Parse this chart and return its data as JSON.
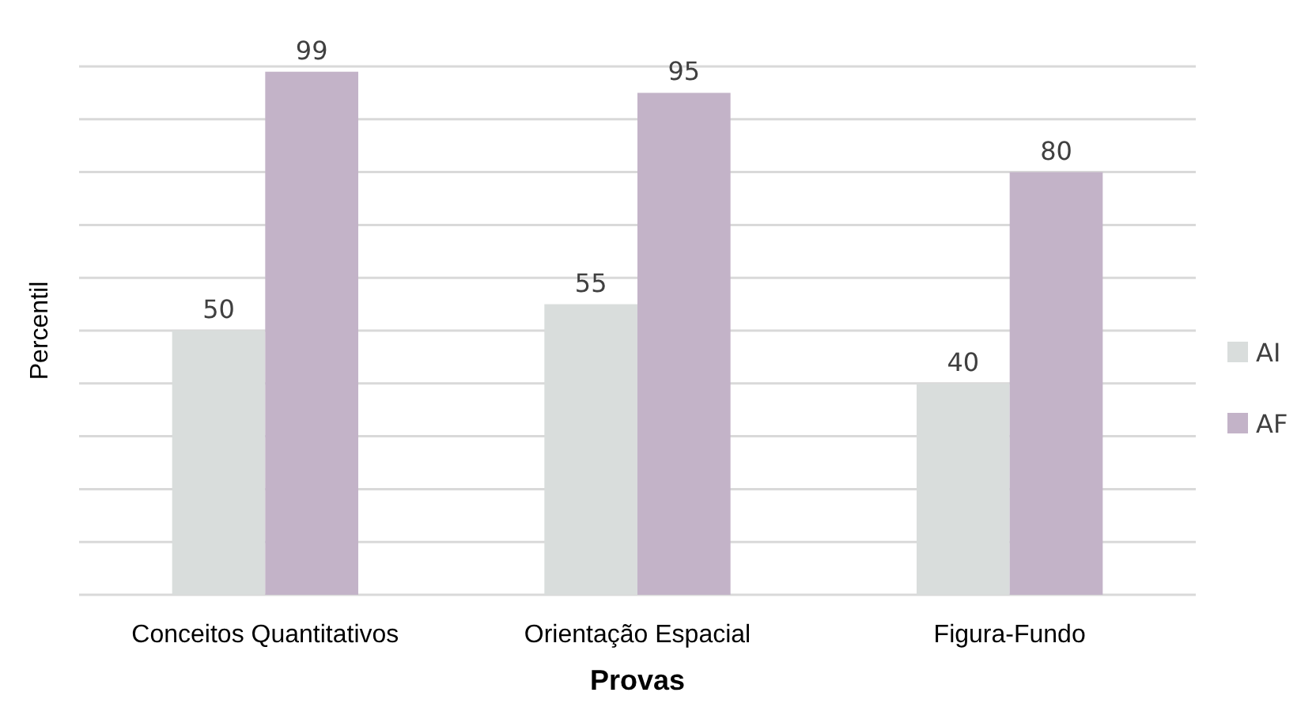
{
  "chart_data": {
    "type": "bar",
    "xlabel": "Provas",
    "ylabel": "Percentil",
    "categories": [
      "Conceitos Quantitativos",
      "Orientação Espacial",
      "Figura-Fundo"
    ],
    "series": [
      {
        "name": "AI",
        "color": "#d9dddc",
        "values": [
          50,
          55,
          40
        ]
      },
      {
        "name": "AF",
        "color": "#c3b3c8",
        "values": [
          99,
          95,
          80
        ]
      }
    ],
    "ylim": [
      0,
      100
    ],
    "yticks": [
      {
        "value": 0,
        "label": null
      },
      {
        "value": 10,
        "label": null
      },
      {
        "value": 20,
        "label": null
      },
      {
        "value": 30,
        "label": null
      },
      {
        "value": 40,
        "label": null
      },
      {
        "value": 50,
        "label": null
      },
      {
        "value": 60,
        "label": null
      },
      {
        "value": 70,
        "label": null
      },
      {
        "value": 80,
        "label": null
      },
      {
        "value": 90,
        "label": null
      },
      {
        "value": 100,
        "label": null
      }
    ],
    "tick_labels": "x",
    "grid": "y",
    "legend": "right",
    "data_labels": true
  }
}
